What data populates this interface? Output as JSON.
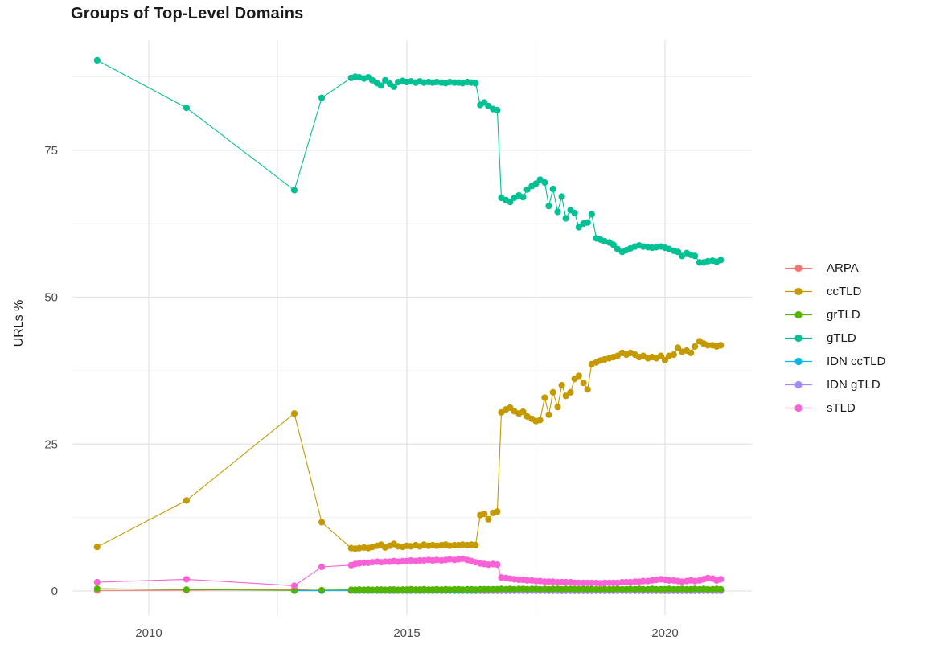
{
  "chart_data": {
    "type": "scatter",
    "title": "Groups of Top-Level Domains",
    "xlabel": "",
    "ylabel": "URLs %",
    "legend_position": "right",
    "grid": true,
    "x_axis": {
      "ticks": [
        2010,
        2015,
        2020
      ],
      "tick_labels": [
        "2010",
        "2015",
        "2020"
      ],
      "minor_ticks": [
        2012.5,
        2017.5
      ],
      "range": [
        2008.5,
        2021.7
      ]
    },
    "y_axis": {
      "ticks": [
        0,
        25,
        50,
        75
      ],
      "tick_labels": [
        "0",
        "25",
        "50",
        "75"
      ],
      "minor_ticks": [
        12.5,
        37.5,
        62.5,
        87.5
      ],
      "range": [
        -4,
        94
      ]
    },
    "early_x": [
      2009.0,
      2010.73,
      2012.82,
      2013.35
    ],
    "dense_x": [
      2013.92,
      2014.0,
      2014.08,
      2014.17,
      2014.25,
      2014.33,
      2014.42,
      2014.5,
      2014.58,
      2014.67,
      2014.75,
      2014.83,
      2014.92,
      2015.0,
      2015.08,
      2015.17,
      2015.25,
      2015.33,
      2015.42,
      2015.5,
      2015.58,
      2015.67,
      2015.75,
      2015.83,
      2015.92,
      2016.0,
      2016.08,
      2016.17,
      2016.25,
      2016.33,
      2016.42,
      2016.5,
      2016.58,
      2016.67,
      2016.75,
      2016.83,
      2016.92,
      2017.0,
      2017.08,
      2017.17,
      2017.25,
      2017.33,
      2017.42,
      2017.5,
      2017.58,
      2017.67,
      2017.75,
      2017.83,
      2017.92,
      2018.0,
      2018.08,
      2018.17,
      2018.25,
      2018.33,
      2018.42,
      2018.5,
      2018.58,
      2018.67,
      2018.75,
      2018.83,
      2018.92,
      2019.0,
      2019.08,
      2019.17,
      2019.25,
      2019.33,
      2019.42,
      2019.5,
      2019.58,
      2019.67,
      2019.75,
      2019.83,
      2019.92,
      2020.0,
      2020.08,
      2020.17,
      2020.25,
      2020.33,
      2020.42,
      2020.5,
      2020.58,
      2020.67,
      2020.75,
      2020.83,
      2020.92,
      2021.0,
      2021.08
    ],
    "series": [
      {
        "name": "ARPA",
        "color": "#F8766D",
        "early": [
          0.1,
          0.12,
          0.25,
          0.08
        ],
        "dense": [
          0.05,
          0.04,
          0.05,
          0.05,
          0.04,
          0.05,
          0.04,
          0.05,
          0.05,
          0.04,
          0.05,
          0.04,
          0.05,
          0.05,
          0.04,
          0.05,
          0.04,
          0.05,
          0.05,
          0.04,
          0.05,
          0.04,
          0.05,
          0.05,
          0.04,
          0.05,
          0.04,
          0.05,
          0.05,
          0.04,
          0.05,
          0.04,
          0.05,
          0.05,
          0.04,
          0.05,
          0.04,
          0.05,
          0.05,
          0.04,
          0.05,
          0.04,
          0.05,
          0.05,
          0.04,
          0.05,
          0.04,
          0.05,
          0.05,
          0.04,
          0.05,
          0.04,
          0.05,
          0.05,
          0.04,
          0.05,
          0.04,
          0.05,
          0.05,
          0.04,
          0.05,
          0.04,
          0.05,
          0.05,
          0.04,
          0.05,
          0.04,
          0.05,
          0.05,
          0.04,
          0.05,
          0.04,
          0.05,
          0.05,
          0.04,
          0.05,
          0.04,
          0.05,
          0.05,
          0.04,
          0.05,
          0.04,
          0.05,
          0.05,
          0.04,
          0.05,
          0.04
        ]
      },
      {
        "name": "ccTLD",
        "color": "#C49A00",
        "early": [
          7.5,
          15.4,
          30.2,
          11.7
        ],
        "dense": [
          7.3,
          7.2,
          7.3,
          7.4,
          7.3,
          7.5,
          7.7,
          7.9,
          7.4,
          7.7,
          8.0,
          7.6,
          7.5,
          7.7,
          7.6,
          7.8,
          7.6,
          7.9,
          7.7,
          7.8,
          7.7,
          7.8,
          7.9,
          7.7,
          7.8,
          7.8,
          7.9,
          7.8,
          7.9,
          7.8,
          12.9,
          13.1,
          12.2,
          13.3,
          13.5,
          30.4,
          30.9,
          31.2,
          30.6,
          30.2,
          30.5,
          29.7,
          29.3,
          28.9,
          29.1,
          32.9,
          30.0,
          33.8,
          31.3,
          35.0,
          33.2,
          33.8,
          36.1,
          36.6,
          35.4,
          34.3,
          38.6,
          38.9,
          39.2,
          39.4,
          39.6,
          39.8,
          40.0,
          40.5,
          40.2,
          40.5,
          40.2,
          39.8,
          40.0,
          39.6,
          39.8,
          39.6,
          40.0,
          39.3,
          40.0,
          40.2,
          41.4,
          40.7,
          40.9,
          40.5,
          41.6,
          42.5,
          42.1,
          41.8,
          41.8,
          41.6,
          41.8
        ]
      },
      {
        "name": "grTLD",
        "color": "#53B400",
        "early": [
          0.4,
          0.25,
          0.1,
          0.15
        ],
        "dense": [
          0.2,
          0.2,
          0.25,
          0.2,
          0.25,
          0.2,
          0.25,
          0.25,
          0.2,
          0.25,
          0.25,
          0.2,
          0.25,
          0.25,
          0.3,
          0.25,
          0.25,
          0.3,
          0.25,
          0.25,
          0.3,
          0.25,
          0.3,
          0.25,
          0.3,
          0.3,
          0.25,
          0.3,
          0.3,
          0.25,
          0.3,
          0.3,
          0.3,
          0.3,
          0.3,
          0.35,
          0.3,
          0.35,
          0.3,
          0.35,
          0.35,
          0.3,
          0.35,
          0.35,
          0.3,
          0.35,
          0.3,
          0.35,
          0.35,
          0.3,
          0.35,
          0.35,
          0.3,
          0.3,
          0.35,
          0.3,
          0.35,
          0.3,
          0.3,
          0.35,
          0.3,
          0.3,
          0.35,
          0.3,
          0.3,
          0.35,
          0.3,
          0.35,
          0.3,
          0.3,
          0.35,
          0.3,
          0.3,
          0.3,
          0.35,
          0.3,
          0.3,
          0.35,
          0.3,
          0.3,
          0.35,
          0.3,
          0.35,
          0.3,
          0.3,
          0.35,
          0.3
        ]
      },
      {
        "name": "gTLD",
        "color": "#00C094",
        "early": [
          90.3,
          82.2,
          68.2,
          83.9
        ],
        "dense": [
          87.3,
          87.5,
          87.4,
          87.2,
          87.4,
          86.9,
          86.4,
          86.0,
          86.9,
          86.3,
          85.8,
          86.6,
          86.8,
          86.6,
          86.7,
          86.5,
          86.7,
          86.5,
          86.6,
          86.5,
          86.6,
          86.5,
          86.4,
          86.6,
          86.5,
          86.5,
          86.4,
          86.6,
          86.5,
          86.4,
          82.7,
          83.1,
          82.5,
          82.0,
          81.8,
          66.9,
          66.5,
          66.2,
          66.9,
          67.3,
          67.0,
          68.3,
          68.9,
          69.3,
          70.0,
          69.5,
          65.5,
          68.4,
          64.5,
          67.1,
          63.4,
          64.8,
          64.3,
          61.9,
          62.5,
          62.7,
          64.1,
          60.0,
          59.8,
          59.5,
          59.3,
          58.9,
          58.2,
          57.7,
          58.0,
          58.3,
          58.6,
          58.8,
          58.6,
          58.5,
          58.4,
          58.5,
          58.6,
          58.4,
          58.2,
          57.9,
          57.7,
          57.0,
          57.5,
          57.2,
          57.0,
          55.9,
          55.9,
          56.1,
          56.2,
          56.0,
          56.3
        ]
      },
      {
        "name": "IDN ccTLD",
        "color": "#00B6EB",
        "early": [
          null,
          null,
          0.05,
          0.05
        ],
        "dense": [
          0.1,
          0.08,
          0.09,
          0.1,
          0.08,
          0.09,
          0.1,
          0.09,
          0.08,
          0.1,
          0.09,
          0.08,
          0.1,
          0.09,
          0.08,
          0.1,
          0.09,
          0.08,
          0.1,
          0.09,
          0.08,
          0.1,
          0.09,
          0.08,
          0.1,
          0.09,
          0.08,
          0.1,
          0.09,
          0.08,
          0.1,
          0.09,
          0.08,
          0.1,
          0.09,
          0.08,
          0.1,
          0.09,
          0.08,
          0.1,
          0.09,
          0.08,
          0.1,
          0.09,
          0.08,
          0.1,
          0.09,
          0.08,
          0.1,
          0.09,
          0.08,
          0.1,
          0.09,
          0.08,
          0.1,
          0.09,
          0.08,
          0.1,
          0.09,
          0.08,
          0.1,
          0.09,
          0.08,
          0.1,
          0.09,
          0.08,
          0.1,
          0.09,
          0.08,
          0.1,
          0.09,
          0.08,
          0.1,
          0.09,
          0.08,
          0.1,
          0.09,
          0.08,
          0.1,
          0.09,
          0.08,
          0.1,
          0.09,
          0.08,
          0.1,
          0.09,
          0.08
        ]
      },
      {
        "name": "IDN gTLD",
        "color": "#A58AFF",
        "early": [
          null,
          null,
          null,
          null
        ],
        "dense": [
          null,
          null,
          null,
          null,
          null,
          null,
          null,
          null,
          null,
          null,
          null,
          null,
          null,
          null,
          null,
          null,
          null,
          null,
          null,
          null,
          null,
          null,
          null,
          null,
          null,
          null,
          null,
          null,
          null,
          null,
          0.05,
          0.05,
          0.06,
          0.05,
          0.06,
          0.05,
          0.05,
          0.06,
          0.05,
          0.05,
          0.06,
          0.05,
          0.06,
          0.06,
          0.05,
          0.06,
          0.05,
          0.06,
          0.05,
          0.06,
          0.05,
          0.06,
          0.06,
          0.05,
          0.06,
          0.05,
          0.06,
          0.06,
          0.05,
          0.06,
          0.06,
          0.05,
          0.06,
          0.05,
          0.06,
          0.06,
          0.05,
          0.06,
          0.05,
          0.06,
          0.05,
          0.06,
          0.06,
          0.05,
          0.06,
          0.06,
          0.05,
          0.06,
          0.05,
          0.06,
          0.06,
          0.05,
          0.06,
          0.06,
          0.05,
          0.06,
          0.07
        ]
      },
      {
        "name": "sTLD",
        "color": "#FB61D7",
        "early": [
          1.5,
          2.0,
          0.9,
          4.1
        ],
        "dense": [
          4.4,
          4.6,
          4.7,
          4.8,
          4.8,
          4.9,
          5.0,
          4.9,
          5.0,
          5.0,
          5.1,
          5.0,
          5.1,
          5.1,
          5.2,
          5.1,
          5.2,
          5.2,
          5.3,
          5.2,
          5.3,
          5.2,
          5.3,
          5.4,
          5.3,
          5.4,
          5.5,
          5.3,
          5.1,
          4.9,
          4.7,
          4.6,
          4.5,
          4.6,
          4.5,
          2.3,
          2.2,
          2.1,
          2.0,
          1.9,
          1.9,
          1.8,
          1.8,
          1.7,
          1.7,
          1.6,
          1.6,
          1.6,
          1.5,
          1.5,
          1.5,
          1.5,
          1.4,
          1.4,
          1.4,
          1.4,
          1.4,
          1.4,
          1.3,
          1.4,
          1.4,
          1.4,
          1.4,
          1.5,
          1.5,
          1.5,
          1.6,
          1.6,
          1.7,
          1.7,
          1.8,
          1.9,
          2.0,
          1.9,
          1.8,
          1.8,
          1.7,
          1.6,
          1.7,
          1.8,
          1.7,
          1.8,
          2.0,
          2.2,
          2.1,
          1.8,
          2.0
        ]
      }
    ]
  }
}
